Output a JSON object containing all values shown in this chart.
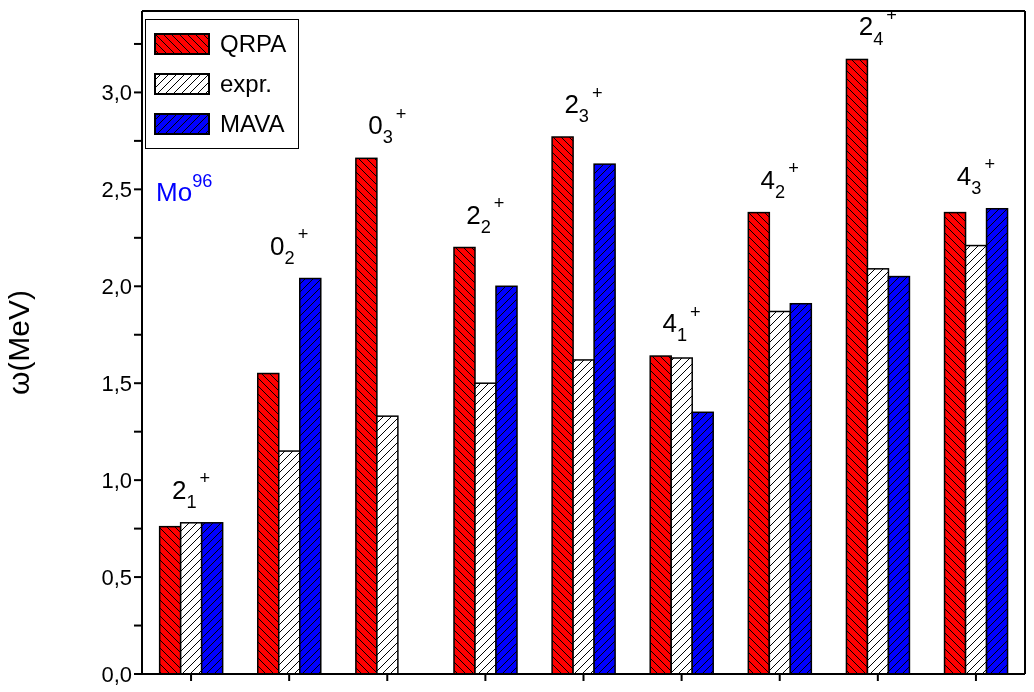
{
  "chart_data": {
    "type": "bar",
    "ylabel": "ω(MeV)",
    "categories": [
      null,
      null,
      null,
      null,
      null,
      null,
      null,
      null,
      null
    ],
    "series": [
      {
        "name": "QRPA",
        "color": "#ff0000",
        "values": [
          0.76,
          1.55,
          2.66,
          2.2,
          2.77,
          1.64,
          2.38,
          3.17,
          2.38
        ]
      },
      {
        "name": "expr.",
        "color": "#ffffff",
        "values": [
          0.78,
          1.15,
          1.33,
          1.5,
          1.62,
          1.63,
          1.87,
          2.09,
          2.21
        ]
      },
      {
        "name": "MAVA",
        "color": "#0000ff",
        "values": [
          0.78,
          2.04,
          null,
          2.0,
          2.63,
          1.35,
          1.91,
          2.05,
          2.4
        ]
      }
    ],
    "ylim": [
      0,
      3.42
    ],
    "yticks": [
      {
        "value": 0,
        "label": "0,0"
      },
      {
        "value": 0.25,
        "label": null
      },
      {
        "value": 0.5,
        "label": "0,5"
      },
      {
        "value": 0.75,
        "label": null
      },
      {
        "value": 1.0,
        "label": "1,0"
      },
      {
        "value": 1.25,
        "label": null
      },
      {
        "value": 1.5,
        "label": "1,5"
      },
      {
        "value": 1.75,
        "label": null
      },
      {
        "value": 2.0,
        "label": "2,0"
      },
      {
        "value": 2.25,
        "label": null
      },
      {
        "value": 2.5,
        "label": "2,5"
      },
      {
        "value": 2.75,
        "label": null
      },
      {
        "value": 3.0,
        "label": "3,0"
      },
      {
        "value": 3.25,
        "label": null
      }
    ],
    "annotations": [
      "2$_{1}$$^{+}$",
      "0$_{2}$$^{+}$",
      "0$_{3}$$^{+}$",
      "2$_{2}$$^{+}$",
      "2$_{3}$$^{+}$",
      "4$_{1}$$^{+}$",
      "4$_{2}$$^{+}$",
      "2$_{4}$$^{+}$",
      "4$_{3}$$^{+}$",
      "Mo$^{96}$"
    ],
    "legend": "top left",
    "tick_labels": "y"
  }
}
